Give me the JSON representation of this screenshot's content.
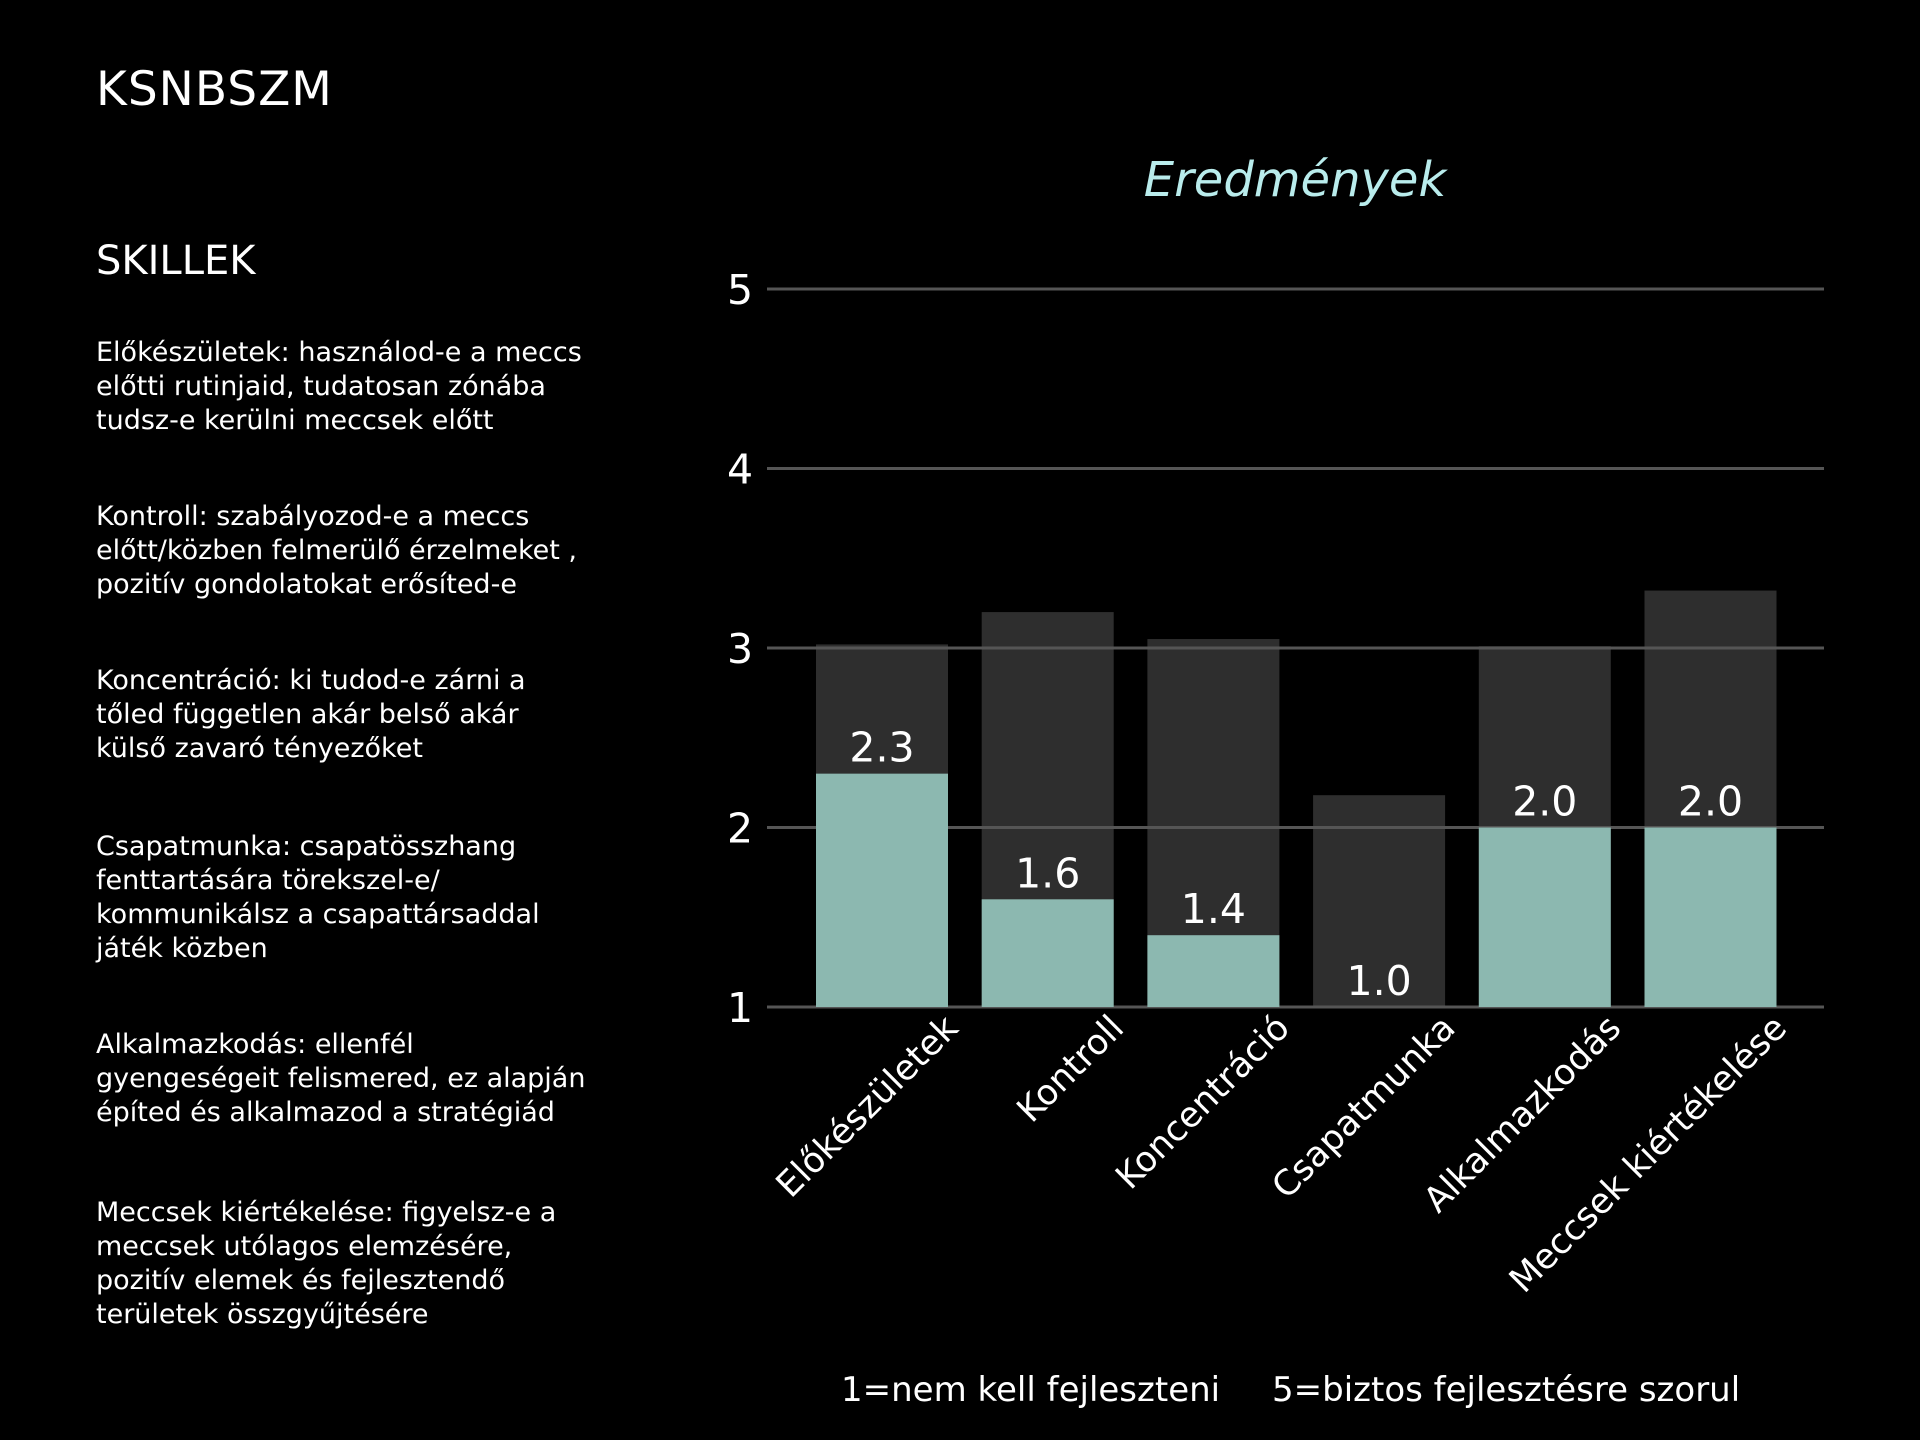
{
  "brand": "KSNBSZM",
  "skills": {
    "heading": "SKILLEK",
    "items": [
      {
        "text": "Előkészületek: használod-e a  meccs\nelőtti rutinjaid, tudatosan zónába\ntudsz-e kerülni  meccsek előtt"
      },
      {
        "text": "Kontroll: szabályozod-e a meccs\nelőtt/közben felmerülő érzelmeket ,\npozitív gondolatokat erősíted-e"
      },
      {
        "text": "Koncentráció: ki tudod-e zárni a\ntőled független akár belső akár\nkülső zavaró tényezőket"
      },
      {
        "text": "Csapatmunka: csapatösszhang\nfenttartására törekszel-e/\nkommunikálsz a csapattársaddal\njáték közben"
      },
      {
        "text": "Alkalmazkodás: ellenfél\ngyengeségeit felismered, ez alapján\népíted és alkalmazod a stratégiád"
      },
      {
        "text": "Meccsek kiértékelése: figyelsz-e a\nmeccsek utólagos elemzésére,\npozitív elemek és fejlesztendő\nterületek összgyűjtésére"
      }
    ]
  },
  "legend": {
    "low": "1=nem kell fejleszteni",
    "high": "5=biztos fejlesztésre szorul"
  },
  "chart_data": {
    "type": "bar",
    "title": "Eredmények",
    "categories": [
      "Előkészületek",
      "Kontroll",
      "Koncentráció",
      "Csapatmunka",
      "Alkalmazkodás",
      "Meccsek kiértékelése"
    ],
    "series": [
      {
        "values": [
          3.02,
          3.2,
          3.05,
          2.18,
          3.01,
          3.32
        ]
      },
      {
        "values": [
          2.3,
          1.6,
          1.4,
          1.0,
          2.0,
          2.0
        ],
        "data_labels": [
          "2.3",
          "1.6",
          "1.4",
          "1.0",
          "2.0",
          "2.0"
        ]
      }
    ],
    "ylim": [
      1,
      5
    ],
    "yticks": [
      1,
      2,
      3,
      4,
      5
    ],
    "grid": true,
    "colors": {
      "background_series": "#2e2e2e",
      "foreground_series": "#8cb8b0",
      "title": "#b9ecec",
      "grid": "#555555"
    }
  }
}
